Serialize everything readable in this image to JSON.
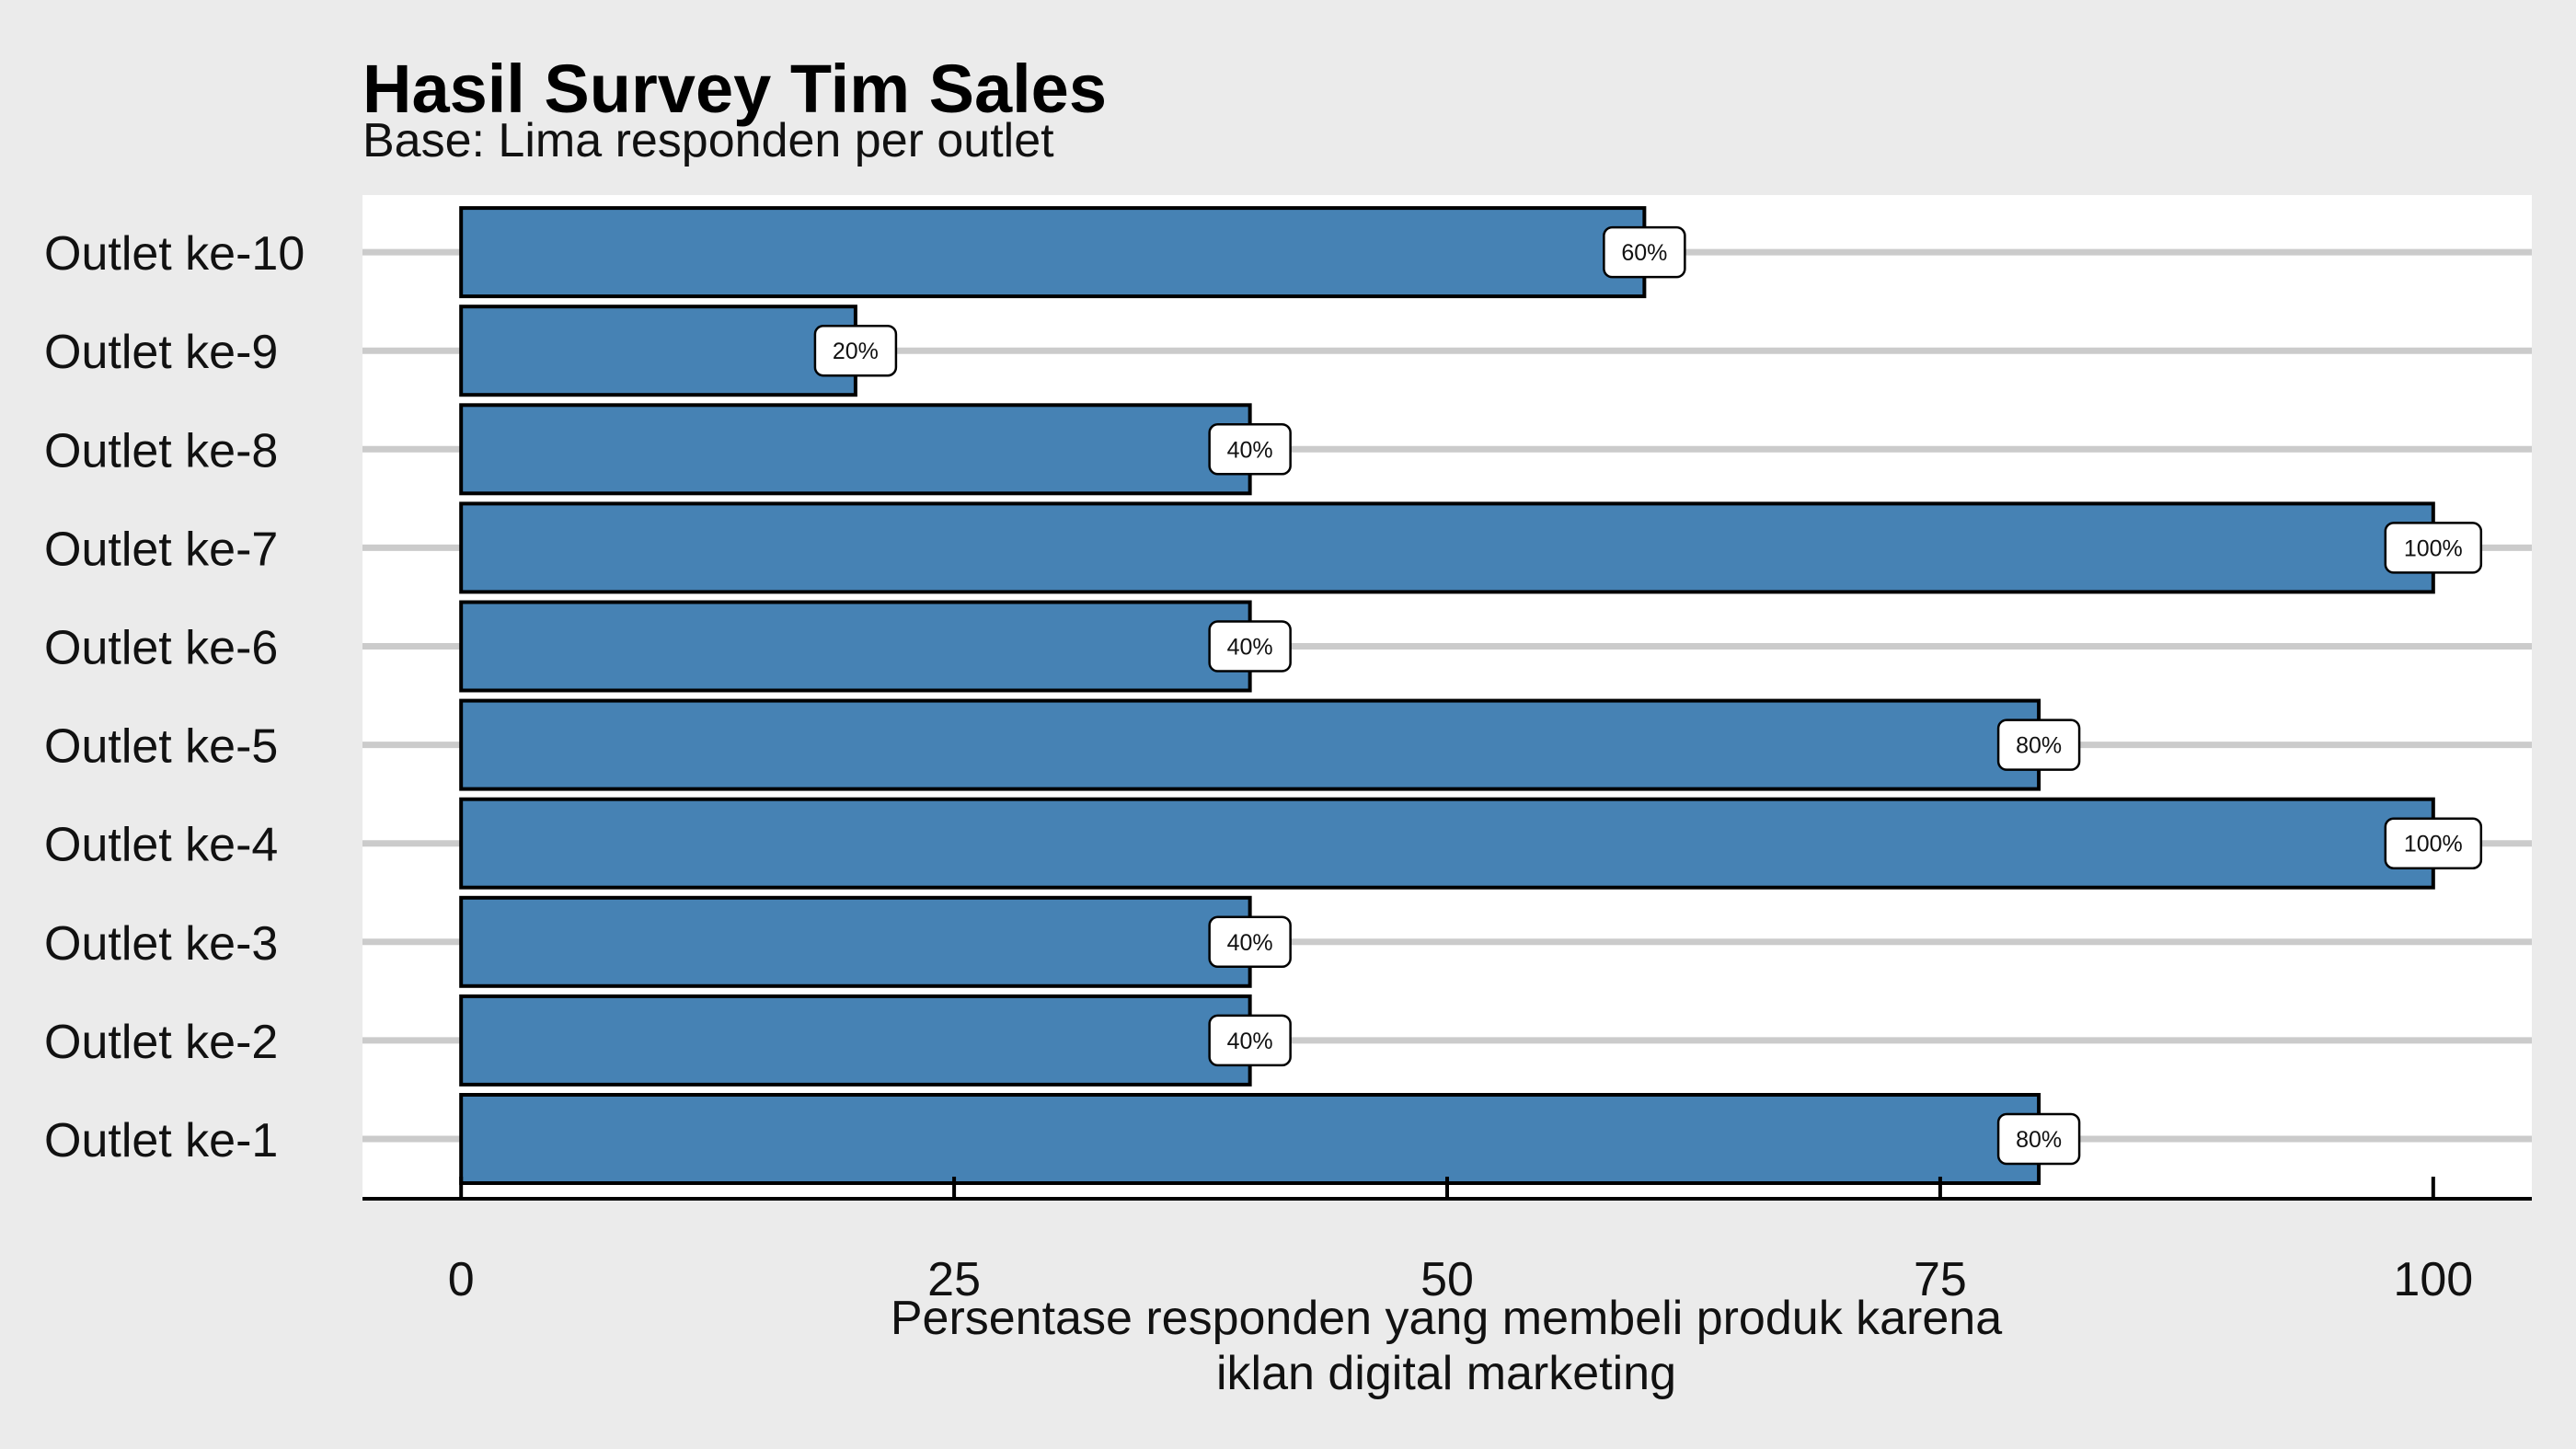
{
  "chart_data": {
    "type": "bar",
    "orientation": "horizontal",
    "title": "Hasil Survey Tim Sales",
    "subtitle": "Base: Lima responden per outlet",
    "xlabel": [
      "Persentase responden yang membeli produk karena",
      "iklan digital marketing"
    ],
    "ylabel": "",
    "categories": [
      "Outlet ke-1",
      "Outlet ke-2",
      "Outlet ke-3",
      "Outlet ke-4",
      "Outlet ke-5",
      "Outlet ke-6",
      "Outlet ke-7",
      "Outlet ke-8",
      "Outlet ke-9",
      "Outlet ke-10"
    ],
    "values": [
      80,
      40,
      40,
      100,
      80,
      40,
      100,
      40,
      20,
      60
    ],
    "data_labels": [
      "80%",
      "40%",
      "40%",
      "100%",
      "80%",
      "40%",
      "100%",
      "40%",
      "20%",
      "60%"
    ],
    "xlim": [
      -5,
      105
    ],
    "xticks": [
      0,
      25,
      50,
      75,
      100
    ],
    "xtick_labels": [
      "0",
      "25",
      "50",
      "75",
      "100"
    ],
    "grid": "horizontal",
    "legend": "none",
    "colors": {
      "bar_fill": "#4682b4",
      "bar_stroke": "#000000",
      "panel_background": "#ffffff",
      "plot_background": "#ebebeb",
      "gridline": "#cbcbcb"
    }
  }
}
